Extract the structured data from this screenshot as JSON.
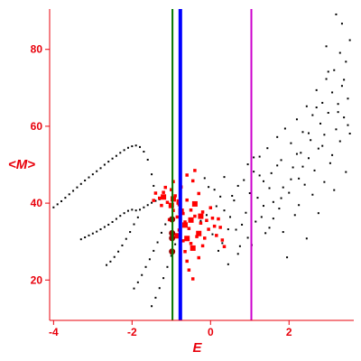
{
  "chart_data": {
    "type": "scatter",
    "title": "",
    "xlabel": "E",
    "ylabel": "<M>",
    "xlim": [
      -4.1,
      3.65
    ],
    "ylim": [
      9.5,
      90.5
    ],
    "xticks": [
      -4,
      -2,
      0,
      2
    ],
    "yticks": [
      20,
      40,
      60,
      80
    ],
    "grid": false,
    "colors": {
      "axes": "#e8000b",
      "black_points": "#000000",
      "red_points": "#ff0000",
      "dark_red_points": "#990000",
      "line_green": "#007700",
      "line_blue": "#0000ff",
      "line_magenta": "#cc00cc"
    },
    "vertical_lines": [
      {
        "color": "green",
        "x": -0.97
      },
      {
        "color": "blue",
        "x": -0.77
      },
      {
        "color": "magenta",
        "x": 1.04
      }
    ],
    "series": [
      {
        "marker": "black-dot",
        "points": [
          [
            -4.0,
            38.9
          ],
          [
            -3.9,
            39.7
          ],
          [
            -3.8,
            40.5
          ],
          [
            -3.7,
            41.4
          ],
          [
            -3.6,
            42.3
          ],
          [
            -3.5,
            43.2
          ],
          [
            -3.4,
            44.1
          ],
          [
            -3.3,
            45.0
          ],
          [
            -3.2,
            45.9
          ],
          [
            -3.1,
            46.7
          ],
          [
            -3.0,
            47.5
          ],
          [
            -2.9,
            48.3
          ],
          [
            -2.8,
            49.1
          ],
          [
            -2.7,
            50.0
          ],
          [
            -2.6,
            50.8
          ],
          [
            -2.5,
            51.6
          ],
          [
            -2.4,
            52.3
          ],
          [
            -2.3,
            53.1
          ],
          [
            -2.2,
            53.8
          ],
          [
            -2.1,
            54.4
          ],
          [
            -2.0,
            54.8
          ],
          [
            -1.9,
            55.0
          ],
          [
            -1.8,
            54.6
          ],
          [
            -1.7,
            53.4
          ],
          [
            -1.6,
            51.3
          ],
          [
            -1.5,
            47.5
          ],
          [
            -1.45,
            44.5
          ],
          [
            -3.3,
            30.6
          ],
          [
            -3.2,
            31.1
          ],
          [
            -3.1,
            31.6
          ],
          [
            -3.0,
            32.1
          ],
          [
            -2.9,
            32.6
          ],
          [
            -2.8,
            33.2
          ],
          [
            -2.7,
            33.8
          ],
          [
            -2.6,
            34.4
          ],
          [
            -2.5,
            35.1
          ],
          [
            -2.4,
            35.9
          ],
          [
            -2.3,
            36.7
          ],
          [
            -2.2,
            37.4
          ],
          [
            -2.1,
            38.0
          ],
          [
            -2.0,
            38.3
          ],
          [
            -1.9,
            38.1
          ],
          [
            -1.8,
            38.3
          ],
          [
            -1.7,
            38.9
          ],
          [
            -1.6,
            39.5
          ],
          [
            -1.5,
            40.1
          ],
          [
            -1.4,
            40.6
          ],
          [
            -1.3,
            41.0
          ],
          [
            -2.65,
            23.9
          ],
          [
            -2.55,
            24.8
          ],
          [
            -2.45,
            26.0
          ],
          [
            -2.35,
            27.4
          ],
          [
            -2.25,
            29.0
          ],
          [
            -2.15,
            30.7
          ],
          [
            -2.05,
            32.5
          ],
          [
            -1.95,
            34.5
          ],
          [
            -1.85,
            36.3
          ],
          [
            -1.95,
            17.8
          ],
          [
            -1.85,
            19.4
          ],
          [
            -1.75,
            21.3
          ],
          [
            -1.65,
            23.4
          ],
          [
            -1.55,
            25.4
          ],
          [
            -1.45,
            27.6
          ],
          [
            -1.35,
            29.8
          ],
          [
            -1.25,
            32.3
          ],
          [
            -1.15,
            34.5
          ],
          [
            -1.5,
            13.2
          ],
          [
            -1.4,
            15.4
          ],
          [
            -1.3,
            17.9
          ],
          [
            -1.2,
            20.5
          ],
          [
            -1.1,
            23.4
          ],
          [
            -1.0,
            26.3
          ],
          [
            -0.9,
            29.3
          ],
          [
            -0.8,
            31.8
          ],
          [
            -0.15,
            46.5
          ],
          [
            -0.05,
            44.2
          ],
          [
            0.1,
            43.5
          ],
          [
            0.25,
            41.7
          ],
          [
            0.35,
            38.1
          ],
          [
            0.5,
            36.4
          ],
          [
            0.6,
            40.7
          ],
          [
            0.7,
            44.5
          ],
          [
            0.8,
            34.4
          ],
          [
            0.9,
            37.5
          ],
          [
            0.95,
            31.0
          ],
          [
            1.05,
            29.1
          ],
          [
            1.1,
            48.2
          ],
          [
            1.2,
            41.4
          ],
          [
            1.25,
            52.1
          ],
          [
            1.3,
            36.4
          ],
          [
            1.35,
            45.7
          ],
          [
            1.45,
            54.3
          ],
          [
            1.5,
            33.6
          ],
          [
            1.55,
            47.8
          ],
          [
            1.6,
            40.3
          ],
          [
            1.7,
            57.2
          ],
          [
            1.75,
            38.6
          ],
          [
            1.8,
            51.2
          ],
          [
            1.85,
            44.1
          ],
          [
            1.9,
            59.4
          ],
          [
            2.0,
            42.7
          ],
          [
            2.05,
            55.6
          ],
          [
            2.1,
            49.3
          ],
          [
            2.15,
            36.9
          ],
          [
            2.2,
            61.8
          ],
          [
            2.25,
            46.4
          ],
          [
            2.3,
            53.1
          ],
          [
            2.35,
            58.5
          ],
          [
            2.4,
            44.8
          ],
          [
            2.45,
            65.2
          ],
          [
            2.5,
            51.7
          ],
          [
            2.55,
            56.4
          ],
          [
            2.6,
            62.9
          ],
          [
            2.65,
            48.5
          ],
          [
            2.7,
            69.4
          ],
          [
            2.75,
            54.2
          ],
          [
            2.8,
            60.7
          ],
          [
            2.85,
            66.1
          ],
          [
            2.9,
            57.8
          ],
          [
            2.95,
            72.3
          ],
          [
            3.0,
            63.5
          ],
          [
            3.05,
            50.4
          ],
          [
            3.1,
            68.8
          ],
          [
            3.15,
            74.6
          ],
          [
            3.2,
            59.2
          ],
          [
            3.25,
            65.8
          ],
          [
            3.3,
            79.1
          ],
          [
            3.35,
            70.5
          ],
          [
            3.4,
            62.3
          ],
          [
            3.45,
            76.8
          ],
          [
            3.5,
            67.2
          ],
          [
            3.55,
            82.4
          ],
          [
            3.2,
            89.1
          ],
          [
            3.35,
            86.7
          ],
          [
            2.95,
            80.8
          ],
          [
            1.95,
            25.9
          ],
          [
            2.45,
            30.8
          ],
          [
            1.4,
            32.2
          ],
          [
            0.2,
            27.6
          ],
          [
            0.45,
            24.1
          ],
          [
            0.7,
            26.8
          ],
          [
            0.15,
            39.2
          ],
          [
            0.35,
            46.8
          ],
          [
            0.55,
            41.9
          ],
          [
            0.65,
            33.1
          ],
          [
            0.85,
            46.0
          ],
          [
            1.0,
            42.6
          ],
          [
            1.15,
            35.2
          ],
          [
            1.35,
            39.3
          ],
          [
            1.6,
            36.0
          ],
          [
            1.85,
            32.5
          ],
          [
            2.25,
            39.5
          ],
          [
            2.6,
            42.2
          ],
          [
            2.9,
            45.5
          ],
          [
            3.1,
            52.5
          ],
          [
            3.3,
            56.1
          ],
          [
            3.5,
            60.3
          ],
          [
            3.45,
            48.1
          ],
          [
            3.15,
            43.4
          ],
          [
            2.75,
            37.4
          ],
          [
            1.8,
            41.3
          ],
          [
            1.5,
            43.9
          ],
          [
            1.25,
            47.2
          ],
          [
            0.95,
            50.1
          ],
          [
            0.45,
            33.2
          ],
          [
            -0.1,
            36.9
          ],
          [
            0.05,
            31.9
          ],
          [
            -0.25,
            35.4
          ],
          [
            2.05,
            46.2
          ],
          [
            2.2,
            52.8
          ],
          [
            2.5,
            58.2
          ],
          [
            2.7,
            64.9
          ],
          [
            3.0,
            74.2
          ],
          [
            3.4,
            72.1
          ],
          [
            3.55,
            58.1
          ],
          [
            3.25,
            63.7
          ],
          [
            2.85,
            54.9
          ],
          [
            2.35,
            49.5
          ],
          [
            1.7,
            49.8
          ],
          [
            1.1,
            51.9
          ],
          [
            0.75,
            28.8
          ],
          [
            0.3,
            29.6
          ]
        ]
      },
      {
        "marker": "red-square",
        "points": [
          [
            -1.4,
            42.6
          ],
          [
            -1.3,
            41.3
          ],
          [
            -1.2,
            42.8
          ],
          [
            -1.1,
            40.2
          ],
          [
            -1.0,
            43.5
          ],
          [
            -0.95,
            38.1
          ],
          [
            -0.9,
            41.9
          ],
          [
            -0.85,
            36.4
          ],
          [
            -0.8,
            39.6
          ],
          [
            -0.75,
            44.2
          ],
          [
            -0.7,
            37.3
          ],
          [
            -0.65,
            35.1
          ],
          [
            -0.6,
            40.8
          ],
          [
            -0.55,
            33.4
          ],
          [
            -0.5,
            38.2
          ],
          [
            -0.45,
            45.8
          ],
          [
            -0.4,
            36.6
          ],
          [
            -0.35,
            31.3
          ],
          [
            -0.3,
            42.5
          ],
          [
            -0.25,
            34.8
          ],
          [
            -0.2,
            37.7
          ],
          [
            -0.15,
            30.9
          ],
          [
            -0.1,
            35.5
          ],
          [
            -0.05,
            33.2
          ],
          [
            0.0,
            38.8
          ],
          [
            0.05,
            36.1
          ],
          [
            0.1,
            34.0
          ],
          [
            0.15,
            31.6
          ],
          [
            0.2,
            35.9
          ],
          [
            0.25,
            33.7
          ],
          [
            0.3,
            30.4
          ],
          [
            0.35,
            28.7
          ],
          [
            -0.7,
            30.2
          ],
          [
            -0.65,
            27.4
          ],
          [
            -0.6,
            24.9
          ],
          [
            -0.55,
            22.6
          ],
          [
            -0.45,
            20.3
          ],
          [
            -0.3,
            25.8
          ],
          [
            -0.2,
            28.9
          ],
          [
            -0.5,
            29.5
          ],
          [
            -0.8,
            33.0
          ],
          [
            -1.05,
            35.7
          ],
          [
            -1.25,
            39.4
          ],
          [
            -0.95,
            45.6
          ],
          [
            -0.6,
            47.3
          ],
          [
            -0.4,
            48.5
          ],
          [
            -1.45,
            40.7
          ],
          [
            -1.15,
            44.1
          ]
        ]
      },
      {
        "marker": "red-large",
        "points": [
          [
            -1.2,
            41.6
          ],
          [
            -0.95,
            41.1
          ],
          [
            -0.8,
            40.3
          ],
          [
            -0.75,
            37.9
          ],
          [
            -0.65,
            34.3
          ],
          [
            -0.5,
            35.6
          ],
          [
            -0.45,
            28.3
          ],
          [
            -0.3,
            32.1
          ],
          [
            -0.25,
            36.6
          ],
          [
            -0.4,
            39.8
          ],
          [
            -0.85,
            31.5
          ],
          [
            -0.6,
            30.8
          ],
          [
            -1.0,
            39.4
          ]
        ]
      },
      {
        "marker": "dark-red-circle",
        "points": [
          [
            -0.98,
            32.2
          ],
          [
            -0.98,
            30.9
          ],
          [
            -0.98,
            27.4
          ],
          [
            -0.98,
            35.8
          ]
        ]
      }
    ]
  }
}
